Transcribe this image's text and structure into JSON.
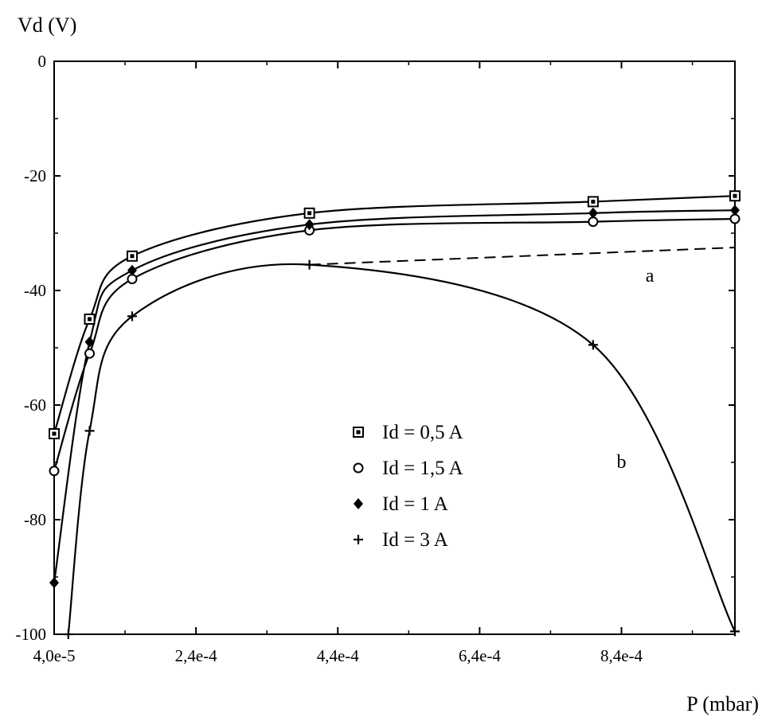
{
  "chart_data": {
    "type": "line",
    "ylabel": "Vd (V)",
    "xlabel": "P (mbar)",
    "xlim": [
      4e-05,
      0.001
    ],
    "ylim": [
      -100,
      0
    ],
    "x_ticks": [
      4e-05,
      0.00024,
      0.00044,
      0.00064,
      0.00084
    ],
    "x_tick_labels": [
      "4,0e-5",
      "2,4e-4",
      "4,4e-4",
      "6,4e-4",
      "8,4e-4"
    ],
    "y_ticks": [
      0,
      -20,
      -40,
      -60,
      -80,
      -100
    ],
    "y_tick_labels": [
      "0",
      "-20",
      "-40",
      "-60",
      "-80",
      "-100"
    ],
    "grid": false,
    "legend_position": "center",
    "series": [
      {
        "name": "Id = 0,5 A",
        "marker": "square",
        "x": [
          4e-05,
          9e-05,
          0.00015,
          0.0004,
          0.0008,
          0.001
        ],
        "y": [
          -65,
          -45,
          -34,
          -26.5,
          -24.5,
          -23.5
        ]
      },
      {
        "name": "Id = 1,5 A",
        "marker": "circle",
        "x": [
          4e-05,
          9e-05,
          0.00015,
          0.0004,
          0.0008,
          0.001
        ],
        "y": [
          -71.5,
          -51,
          -38,
          -29.5,
          -28,
          -27.5
        ]
      },
      {
        "name": "Id = 1 A",
        "marker": "diamond",
        "x": [
          4e-05,
          9e-05,
          0.00015,
          0.0004,
          0.0008,
          0.001
        ],
        "y": [
          -91,
          -49,
          -36.5,
          -28.5,
          -26.5,
          -26
        ]
      },
      {
        "name": "Id = 3 A",
        "marker": "plus",
        "x": [
          6e-05,
          9e-05,
          0.00015,
          0.0004,
          0.0008,
          0.001
        ],
        "y": [
          -100,
          -64.5,
          -44.5,
          -35.5,
          -49.5,
          -99.5
        ]
      }
    ],
    "dashed_extension": {
      "x": [
        0.0004,
        0.001
      ],
      "y": [
        -35.5,
        -32.5
      ]
    },
    "annotations": [
      {
        "text": "a",
        "x": 0.00088,
        "y": -38.5
      },
      {
        "text": "b",
        "x": 0.00084,
        "y": -71
      }
    ]
  }
}
